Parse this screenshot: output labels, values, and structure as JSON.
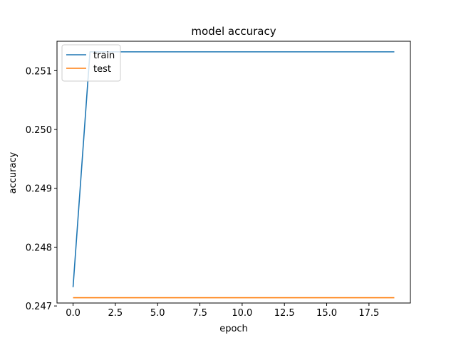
{
  "chart_data": {
    "type": "line",
    "title": "model accuracy",
    "xlabel": "epoch",
    "ylabel": "accuracy",
    "xlim": [
      -0.95,
      19.95
    ],
    "ylim": [
      0.24705,
      0.2515
    ],
    "xticks": [
      0,
      2.5,
      5,
      7.5,
      10,
      12.5,
      15,
      17.5
    ],
    "xtick_labels": [
      "0.0",
      "2.5",
      "5.0",
      "7.5",
      "10.0",
      "12.5",
      "15.0",
      "17.5"
    ],
    "yticks": [
      0.247,
      0.248,
      0.249,
      0.25,
      0.251
    ],
    "ytick_labels": [
      "0.247",
      "0.248",
      "0.249",
      "0.250",
      "0.251"
    ],
    "legend_position": "upper-left",
    "grid": false,
    "x": [
      0,
      1,
      2,
      3,
      4,
      5,
      6,
      7,
      8,
      9,
      10,
      11,
      12,
      13,
      14,
      15,
      16,
      17,
      18,
      19
    ],
    "series": [
      {
        "name": "train",
        "color": "#1f77b4",
        "values": [
          0.24732,
          0.25132,
          0.25132,
          0.25132,
          0.25132,
          0.25132,
          0.25132,
          0.25132,
          0.25132,
          0.25132,
          0.25132,
          0.25132,
          0.25132,
          0.25132,
          0.25132,
          0.25132,
          0.25132,
          0.25132,
          0.25132,
          0.25132
        ]
      },
      {
        "name": "test",
        "color": "#ff7f0e",
        "values": [
          0.24714,
          0.24714,
          0.24714,
          0.24714,
          0.24714,
          0.24714,
          0.24714,
          0.24714,
          0.24714,
          0.24714,
          0.24714,
          0.24714,
          0.24714,
          0.24714,
          0.24714,
          0.24714,
          0.24714,
          0.24714,
          0.24714,
          0.24714
        ]
      }
    ]
  }
}
